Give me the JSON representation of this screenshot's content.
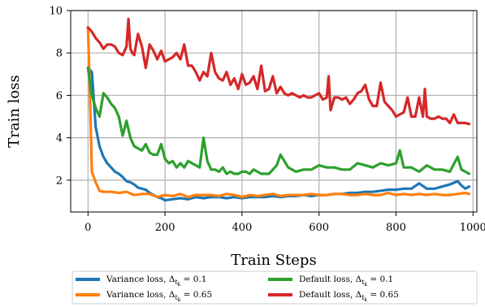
{
  "chart_data": {
    "type": "line",
    "xlabel": "Train Steps",
    "ylabel": "Train loss",
    "xlim": [
      -45,
      1010
    ],
    "ylim": [
      0.5,
      10
    ],
    "xticks": [
      0,
      200,
      400,
      600,
      800,
      1000
    ],
    "yticks": [
      2,
      4,
      6,
      8,
      10
    ],
    "grid": true,
    "legend": {
      "placement": "below",
      "columns": 2
    },
    "series": [
      {
        "name": "Variance loss, Δ_{t_k} = 0.1",
        "label_main": "Variance loss, Δ",
        "label_sub": "t",
        "label_subsub": "k",
        "label_tail": " = 0.1",
        "color": "#1f77b4",
        "x": [
          0,
          10,
          20,
          30,
          40,
          50,
          60,
          70,
          80,
          90,
          100,
          110,
          120,
          130,
          140,
          150,
          160,
          170,
          180,
          190,
          200,
          220,
          240,
          260,
          280,
          300,
          320,
          340,
          360,
          380,
          400,
          420,
          440,
          460,
          480,
          500,
          520,
          540,
          560,
          580,
          600,
          620,
          640,
          660,
          680,
          700,
          720,
          740,
          760,
          780,
          800,
          820,
          840,
          860,
          880,
          900,
          920,
          940,
          960,
          970,
          980,
          990
        ],
        "y": [
          7.3,
          7.1,
          4.5,
          3.6,
          3.1,
          2.8,
          2.6,
          2.4,
          2.3,
          2.15,
          1.95,
          1.9,
          1.8,
          1.65,
          1.6,
          1.55,
          1.4,
          1.3,
          1.2,
          1.15,
          1.05,
          1.1,
          1.15,
          1.1,
          1.2,
          1.15,
          1.2,
          1.2,
          1.15,
          1.2,
          1.15,
          1.2,
          1.2,
          1.2,
          1.25,
          1.2,
          1.25,
          1.25,
          1.3,
          1.25,
          1.3,
          1.3,
          1.35,
          1.35,
          1.4,
          1.4,
          1.45,
          1.45,
          1.5,
          1.55,
          1.55,
          1.6,
          1.6,
          1.85,
          1.6,
          1.6,
          1.7,
          1.8,
          1.95,
          1.75,
          1.6,
          1.7
        ]
      },
      {
        "name": "Variance loss, Δ_{t_k} = 0.65",
        "label_main": "Variance loss, Δ",
        "label_sub": "t",
        "label_subsub": "k",
        "label_tail": " = 0.65",
        "color": "#ff7f0e",
        "x": [
          0,
          5,
          10,
          20,
          30,
          40,
          60,
          80,
          100,
          120,
          140,
          160,
          180,
          200,
          220,
          240,
          260,
          280,
          300,
          320,
          340,
          360,
          380,
          400,
          420,
          440,
          460,
          480,
          500,
          520,
          540,
          560,
          580,
          600,
          620,
          640,
          660,
          680,
          700,
          720,
          740,
          760,
          780,
          800,
          820,
          840,
          860,
          880,
          900,
          920,
          940,
          960,
          980,
          990
        ],
        "y": [
          9.2,
          6,
          2.4,
          1.9,
          1.5,
          1.45,
          1.45,
          1.4,
          1.45,
          1.3,
          1.35,
          1.35,
          1.2,
          1.3,
          1.25,
          1.35,
          1.2,
          1.3,
          1.3,
          1.3,
          1.25,
          1.35,
          1.3,
          1.2,
          1.3,
          1.25,
          1.3,
          1.35,
          1.25,
          1.3,
          1.3,
          1.3,
          1.35,
          1.3,
          1.3,
          1.35,
          1.35,
          1.3,
          1.3,
          1.35,
          1.3,
          1.3,
          1.4,
          1.3,
          1.35,
          1.3,
          1.35,
          1.3,
          1.35,
          1.3,
          1.3,
          1.35,
          1.4,
          1.35
        ]
      },
      {
        "name": "Default loss, Δ_{t_k} = 0.1",
        "label_main": "Default loss, Δ",
        "label_sub": "t",
        "label_subsub": "k",
        "label_tail": " = 0.1",
        "color": "#2ca02c",
        "x": [
          0,
          10,
          20,
          30,
          40,
          50,
          60,
          70,
          80,
          90,
          100,
          110,
          120,
          130,
          140,
          150,
          160,
          170,
          180,
          190,
          200,
          210,
          220,
          230,
          240,
          250,
          260,
          270,
          280,
          290,
          300,
          310,
          320,
          330,
          340,
          350,
          360,
          370,
          380,
          390,
          400,
          410,
          420,
          430,
          440,
          450,
          460,
          470,
          480,
          490,
          500,
          520,
          540,
          560,
          580,
          600,
          620,
          640,
          660,
          680,
          700,
          720,
          740,
          760,
          780,
          800,
          810,
          820,
          840,
          860,
          880,
          900,
          920,
          940,
          960,
          970,
          980,
          990
        ],
        "y": [
          7.3,
          6,
          5.4,
          5,
          6.1,
          5.9,
          5.6,
          5.4,
          5,
          4.1,
          4.8,
          4,
          3.6,
          3.5,
          3.4,
          3.7,
          3.3,
          3.2,
          3.2,
          3.7,
          3,
          2.8,
          2.9,
          2.6,
          2.8,
          2.6,
          2.9,
          2.8,
          2.7,
          2.6,
          4,
          2.9,
          2.5,
          2.5,
          2.4,
          2.6,
          2.3,
          2.4,
          2.3,
          2.3,
          2.4,
          2.4,
          2.3,
          2.5,
          2.4,
          2.3,
          2.3,
          2.3,
          2.5,
          2.7,
          3.2,
          2.6,
          2.4,
          2.5,
          2.5,
          2.7,
          2.6,
          2.6,
          2.5,
          2.5,
          2.8,
          2.7,
          2.6,
          2.8,
          2.7,
          2.8,
          3.4,
          2.6,
          2.6,
          2.4,
          2.7,
          2.5,
          2.5,
          2.4,
          3.1,
          2.5,
          2.4,
          2.3
        ]
      },
      {
        "name": "Default loss, Δ_{t_k} = 0.65",
        "label_main": "Default loss, Δ",
        "label_sub": "t",
        "label_subsub": "k",
        "label_tail": " = 0.65",
        "color": "#d62728",
        "x": [
          0,
          10,
          20,
          30,
          40,
          50,
          60,
          70,
          80,
          90,
          100,
          105,
          110,
          115,
          120,
          130,
          140,
          150,
          160,
          170,
          180,
          190,
          200,
          210,
          220,
          230,
          240,
          250,
          260,
          270,
          280,
          290,
          300,
          310,
          320,
          330,
          340,
          350,
          360,
          370,
          380,
          390,
          400,
          410,
          420,
          430,
          440,
          450,
          460,
          470,
          480,
          490,
          500,
          510,
          520,
          530,
          540,
          550,
          560,
          570,
          580,
          590,
          600,
          610,
          620,
          625,
          630,
          640,
          650,
          660,
          670,
          680,
          690,
          700,
          710,
          720,
          730,
          740,
          750,
          760,
          770,
          780,
          790,
          800,
          810,
          820,
          830,
          840,
          850,
          860,
          870,
          875,
          880,
          890,
          900,
          910,
          920,
          930,
          940,
          950,
          960,
          970,
          980,
          990
        ],
        "y": [
          9.2,
          9,
          8.7,
          8.5,
          8.2,
          8.4,
          8.4,
          8.3,
          8,
          7.9,
          8.3,
          9.6,
          8.2,
          8,
          7.9,
          8.9,
          8.3,
          7.3,
          8.4,
          8.1,
          7.7,
          8.1,
          7.6,
          7.7,
          7.8,
          8,
          7.7,
          8.4,
          7.4,
          7.4,
          7.1,
          6.7,
          7.1,
          6.9,
          8,
          7.1,
          6.8,
          6.7,
          7.1,
          6.5,
          6.8,
          6.3,
          7,
          6.5,
          6.6,
          6.9,
          6.3,
          7.4,
          6.2,
          6.3,
          6.9,
          6.1,
          6.4,
          6.1,
          6,
          6.1,
          6,
          5.9,
          6,
          5.9,
          5.9,
          6,
          6.1,
          5.8,
          5.9,
          6.9,
          5.3,
          5.9,
          5.9,
          5.8,
          5.9,
          5.6,
          5.8,
          6.1,
          6.2,
          6.5,
          5.8,
          5.5,
          5.5,
          6.6,
          5.7,
          5.5,
          5.3,
          5,
          5.1,
          5.2,
          5.9,
          5,
          5,
          5.9,
          5,
          6.3,
          5,
          4.9,
          4.9,
          5,
          4.9,
          4.9,
          4.7,
          5.1,
          4.7,
          4.7,
          4.7,
          4.65
        ]
      }
    ]
  }
}
